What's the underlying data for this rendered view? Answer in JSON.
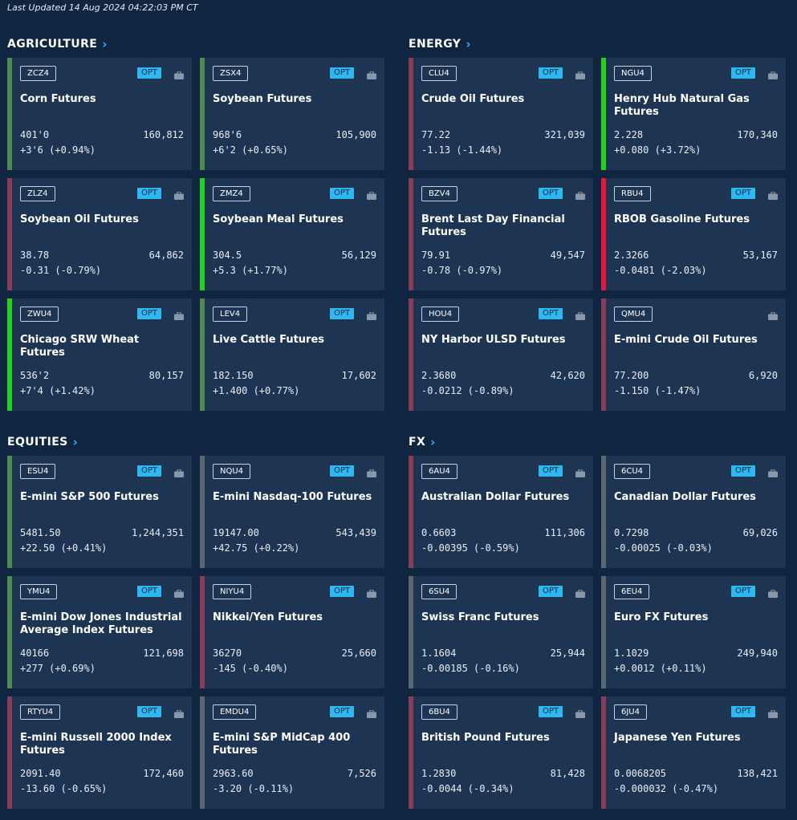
{
  "last_updated": "Last Updated 14 Aug 2024 04:22:03 PM CT",
  "colors": {
    "background": "#0f2540",
    "card": "#1e3453",
    "opt_badge": "#2eb8f2",
    "chevron": "#33b5f0",
    "bar_strong_up": "#22d31e",
    "bar_up": "#4e8a4e",
    "bar_down": "#8a3b57",
    "bar_strong_down": "#e5173f",
    "bar_neutral": "#5a6770"
  },
  "icons": {
    "section_link": "chevron-right-icon",
    "portfolio": "briefcase-icon"
  },
  "sections": [
    {
      "title": "AGRICULTURE",
      "key": "agriculture",
      "cards": [
        {
          "symbol": "ZCZ4",
          "opt": "OPT",
          "name": "Corn Futures",
          "price": "401'0",
          "volume": "160,812",
          "change": "+3'6 (+0.94%)",
          "bar": "up"
        },
        {
          "symbol": "ZSX4",
          "opt": "OPT",
          "name": "Soybean Futures",
          "price": "968'6",
          "volume": "105,900",
          "change": "+6'2 (+0.65%)",
          "bar": "up"
        },
        {
          "symbol": "ZLZ4",
          "opt": "OPT",
          "name": "Soybean Oil Futures",
          "price": "38.78",
          "volume": "64,862",
          "change": "-0.31 (-0.79%)",
          "bar": "down"
        },
        {
          "symbol": "ZMZ4",
          "opt": "OPT",
          "name": "Soybean Meal Futures",
          "price": "304.5",
          "volume": "56,129",
          "change": "+5.3 (+1.77%)",
          "bar": "strong_up"
        },
        {
          "symbol": "ZWU4",
          "opt": "OPT",
          "name": "Chicago SRW Wheat Futures",
          "price": "536'2",
          "volume": "80,157",
          "change": "+7'4 (+1.42%)",
          "bar": "strong_up"
        },
        {
          "symbol": "LEV4",
          "opt": "OPT",
          "name": "Live Cattle Futures",
          "price": "182.150",
          "volume": "17,602",
          "change": "+1.400 (+0.77%)",
          "bar": "up"
        }
      ]
    },
    {
      "title": "ENERGY",
      "key": "energy",
      "cards": [
        {
          "symbol": "CLU4",
          "opt": "OPT",
          "name": "Crude Oil Futures",
          "price": "77.22",
          "volume": "321,039",
          "change": "-1.13 (-1.44%)",
          "bar": "down"
        },
        {
          "symbol": "NGU4",
          "opt": "OPT",
          "name": "Henry Hub Natural Gas Futures",
          "price": "2.228",
          "volume": "170,340",
          "change": "+0.080 (+3.72%)",
          "bar": "strong_up"
        },
        {
          "symbol": "BZV4",
          "opt": "OPT",
          "name": "Brent Last Day Financial Futures",
          "price": "79.91",
          "volume": "49,547",
          "change": "-0.78 (-0.97%)",
          "bar": "down"
        },
        {
          "symbol": "RBU4",
          "opt": "OPT",
          "name": "RBOB Gasoline Futures",
          "price": "2.3266",
          "volume": "53,167",
          "change": "-0.0481 (-2.03%)",
          "bar": "strong_down"
        },
        {
          "symbol": "HOU4",
          "opt": "OPT",
          "name": "NY Harbor ULSD Futures",
          "price": "2.3680",
          "volume": "42,620",
          "change": "-0.0212 (-0.89%)",
          "bar": "down"
        },
        {
          "symbol": "QMU4",
          "opt": "",
          "name": "E-mini Crude Oil Futures",
          "price": "77.200",
          "volume": "6,920",
          "change": "-1.150 (-1.47%)",
          "bar": "down"
        }
      ]
    },
    {
      "title": "EQUITIES",
      "key": "equities",
      "cards": [
        {
          "symbol": "ESU4",
          "opt": "OPT",
          "name": "E-mini S&P 500 Futures",
          "price": "5481.50",
          "volume": "1,244,351",
          "change": "+22.50 (+0.41%)",
          "bar": "up"
        },
        {
          "symbol": "NQU4",
          "opt": "OPT",
          "name": "E-mini Nasdaq-100 Futures",
          "price": "19147.00",
          "volume": "543,439",
          "change": "+42.75 (+0.22%)",
          "bar": "neutral"
        },
        {
          "symbol": "YMU4",
          "opt": "OPT",
          "name": "E-mini Dow Jones Industrial Average Index Futures",
          "price": "40166",
          "volume": "121,698",
          "change": "+277 (+0.69%)",
          "bar": "up"
        },
        {
          "symbol": "NIYU4",
          "opt": "OPT",
          "name": "Nikkei/Yen Futures",
          "price": "36270",
          "volume": "25,660",
          "change": "-145 (-0.40%)",
          "bar": "down"
        },
        {
          "symbol": "RTYU4",
          "opt": "OPT",
          "name": "E-mini  Russell 2000 Index Futures",
          "price": "2091.40",
          "volume": "172,460",
          "change": "-13.60 (-0.65%)",
          "bar": "down"
        },
        {
          "symbol": "EMDU4",
          "opt": "OPT",
          "name": "E-mini S&P MidCap 400 Futures",
          "price": "2963.60",
          "volume": "7,526",
          "change": "-3.20 (-0.11%)",
          "bar": "neutral"
        }
      ]
    },
    {
      "title": "FX",
      "key": "fx",
      "cards": [
        {
          "symbol": "6AU4",
          "opt": "OPT",
          "name": "Australian Dollar Futures",
          "price": "0.6603",
          "volume": "111,306",
          "change": "-0.00395 (-0.59%)",
          "bar": "down"
        },
        {
          "symbol": "6CU4",
          "opt": "OPT",
          "name": "Canadian Dollar Futures",
          "price": "0.7298",
          "volume": "69,026",
          "change": "-0.00025 (-0.03%)",
          "bar": "neutral"
        },
        {
          "symbol": "6SU4",
          "opt": "OPT",
          "name": "Swiss Franc Futures",
          "price": "1.1604",
          "volume": "25,944",
          "change": "-0.00185 (-0.16%)",
          "bar": "neutral"
        },
        {
          "symbol": "6EU4",
          "opt": "OPT",
          "name": "Euro FX Futures",
          "price": "1.1029",
          "volume": "249,940",
          "change": "+0.0012 (+0.11%)",
          "bar": "neutral"
        },
        {
          "symbol": "6BU4",
          "opt": "OPT",
          "name": "British Pound Futures",
          "price": "1.2830",
          "volume": "81,428",
          "change": "-0.0044 (-0.34%)",
          "bar": "down"
        },
        {
          "symbol": "6JU4",
          "opt": "OPT",
          "name": "Japanese Yen Futures",
          "price": "0.0068205",
          "volume": "138,421",
          "change": "-0.000032 (-0.47%)",
          "bar": "down"
        }
      ]
    }
  ]
}
